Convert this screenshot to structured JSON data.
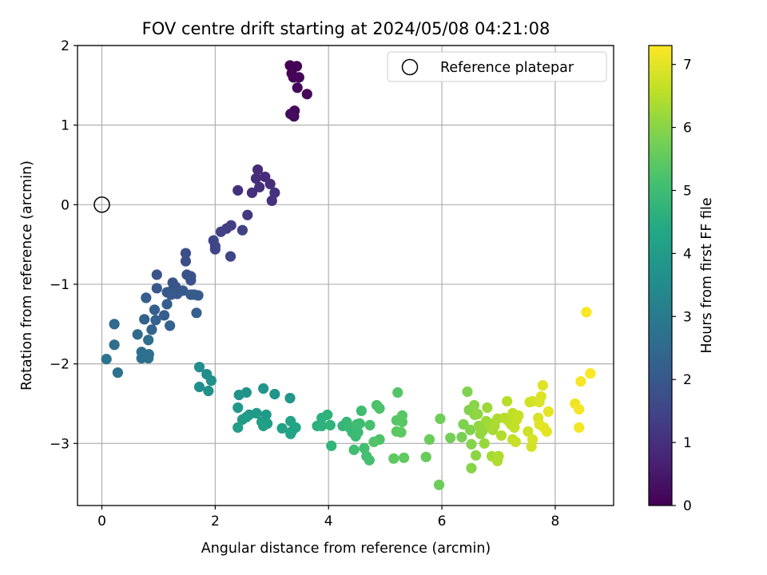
{
  "chart_data": {
    "type": "scatter",
    "title": "FOV centre drift starting at 2024/05/08 04:21:08",
    "xlabel": "Angular distance from reference (arcmin)",
    "ylabel": "Rotation from reference (arcmin)",
    "xlim": [
      -0.43,
      9.03
    ],
    "ylim": [
      -3.78,
      2.0
    ],
    "xticks": [
      0,
      2,
      4,
      6,
      8
    ],
    "yticks": [
      2,
      1,
      0,
      -1,
      -2,
      -3
    ],
    "grid": true,
    "legend": {
      "placement": "top-right",
      "entries": [
        "Reference platepar"
      ]
    },
    "reference_point": {
      "x": 0,
      "y": 0
    },
    "colorbar": {
      "label": "Hours from first FF file",
      "colormap": "viridis",
      "range": [
        0,
        7.3
      ],
      "ticks": [
        0,
        1,
        2,
        3,
        4,
        5,
        6,
        7
      ]
    },
    "points": [
      [
        3.32,
        1.75,
        0.05
      ],
      [
        3.44,
        1.74,
        0.06
      ],
      [
        3.35,
        1.65,
        0.08
      ],
      [
        3.38,
        1.6,
        0.09
      ],
      [
        3.48,
        1.6,
        0.1
      ],
      [
        3.45,
        1.47,
        0.12
      ],
      [
        3.62,
        1.39,
        0.14
      ],
      [
        3.4,
        1.18,
        0.16
      ],
      [
        3.33,
        1.14,
        0.18
      ],
      [
        3.39,
        1.11,
        0.2
      ],
      [
        2.75,
        0.44,
        0.9
      ],
      [
        2.88,
        0.35,
        0.92
      ],
      [
        2.72,
        0.33,
        0.93
      ],
      [
        2.97,
        0.26,
        0.95
      ],
      [
        2.78,
        0.22,
        0.97
      ],
      [
        2.65,
        0.15,
        0.99
      ],
      [
        2.4,
        0.18,
        1.0
      ],
      [
        3.05,
        0.15,
        1.02
      ],
      [
        3.0,
        0.05,
        1.05
      ],
      [
        2.57,
        -0.13,
        1.2
      ],
      [
        2.28,
        -0.26,
        1.3
      ],
      [
        2.2,
        -0.3,
        1.35
      ],
      [
        2.1,
        -0.34,
        1.4
      ],
      [
        2.48,
        -0.32,
        1.42
      ],
      [
        1.97,
        -0.45,
        1.45
      ],
      [
        2.0,
        -0.52,
        1.48
      ],
      [
        2.0,
        -0.56,
        1.5
      ],
      [
        2.27,
        -0.65,
        1.55
      ],
      [
        1.48,
        -0.61,
        1.7
      ],
      [
        1.48,
        -0.71,
        1.75
      ],
      [
        1.5,
        -0.88,
        1.8
      ],
      [
        1.57,
        -0.9,
        1.82
      ],
      [
        1.57,
        -0.95,
        1.85
      ],
      [
        0.97,
        -0.88,
        1.88
      ],
      [
        1.25,
        -0.98,
        1.9
      ],
      [
        1.3,
        -1.03,
        1.93
      ],
      [
        1.25,
        -1.07,
        1.95
      ],
      [
        0.97,
        -1.05,
        1.97
      ],
      [
        1.15,
        -1.1,
        2.0
      ],
      [
        1.22,
        -1.13,
        2.02
      ],
      [
        1.33,
        -1.12,
        2.04
      ],
      [
        1.43,
        -1.08,
        2.06
      ],
      [
        1.57,
        -1.13,
        2.08
      ],
      [
        1.7,
        -1.14,
        2.1
      ],
      [
        1.63,
        -1.13,
        2.12
      ],
      [
        0.78,
        -1.17,
        2.14
      ],
      [
        1.15,
        -1.25,
        2.16
      ],
      [
        0.93,
        -1.32,
        2.18
      ],
      [
        1.1,
        -1.39,
        2.2
      ],
      [
        1.67,
        -1.36,
        2.22
      ],
      [
        0.75,
        -1.44,
        2.24
      ],
      [
        0.95,
        -1.45,
        2.26
      ],
      [
        1.2,
        -1.52,
        2.28
      ],
      [
        0.88,
        -1.57,
        2.3
      ],
      [
        0.22,
        -1.5,
        2.5
      ],
      [
        0.63,
        -1.63,
        2.55
      ],
      [
        0.82,
        -1.7,
        2.6
      ],
      [
        0.22,
        -1.76,
        2.62
      ],
      [
        0.7,
        -1.85,
        2.65
      ],
      [
        0.83,
        -1.88,
        2.68
      ],
      [
        0.7,
        -1.93,
        2.7
      ],
      [
        0.82,
        -1.93,
        2.72
      ],
      [
        0.08,
        -1.94,
        2.75
      ],
      [
        0.28,
        -2.11,
        2.78
      ],
      [
        1.72,
        -2.04,
        3.5
      ],
      [
        1.85,
        -2.13,
        3.55
      ],
      [
        1.93,
        -2.21,
        3.6
      ],
      [
        1.72,
        -2.29,
        3.62
      ],
      [
        1.88,
        -2.34,
        3.65
      ],
      [
        2.42,
        -2.39,
        3.7
      ],
      [
        2.55,
        -2.36,
        3.72
      ],
      [
        2.85,
        -2.31,
        3.75
      ],
      [
        3.05,
        -2.38,
        3.78
      ],
      [
        3.32,
        -2.43,
        3.8
      ],
      [
        2.4,
        -2.55,
        3.85
      ],
      [
        2.6,
        -2.64,
        3.9
      ],
      [
        2.73,
        -2.62,
        3.92
      ],
      [
        2.9,
        -2.64,
        3.95
      ],
      [
        2.48,
        -2.7,
        3.98
      ],
      [
        2.55,
        -2.67,
        4.0
      ],
      [
        2.82,
        -2.73,
        4.02
      ],
      [
        2.92,
        -2.75,
        4.05
      ],
      [
        2.85,
        -2.78,
        4.08
      ],
      [
        2.4,
        -2.8,
        4.1
      ],
      [
        3.18,
        -2.81,
        4.15
      ],
      [
        3.33,
        -2.72,
        4.18
      ],
      [
        3.35,
        -2.85,
        4.2
      ],
      [
        3.33,
        -2.88,
        4.22
      ],
      [
        3.42,
        -2.8,
        4.25
      ],
      [
        3.8,
        -2.78,
        4.6
      ],
      [
        3.88,
        -2.68,
        4.62
      ],
      [
        3.88,
        -2.78,
        4.65
      ],
      [
        3.98,
        -2.64,
        4.68
      ],
      [
        4.03,
        -2.77,
        4.7
      ],
      [
        4.05,
        -3.03,
        4.75
      ],
      [
        4.25,
        -2.78,
        4.8
      ],
      [
        4.32,
        -2.73,
        4.85
      ],
      [
        4.37,
        -2.8,
        4.88
      ],
      [
        4.42,
        -2.86,
        4.9
      ],
      [
        4.48,
        -2.91,
        4.92
      ],
      [
        4.52,
        -2.86,
        4.95
      ],
      [
        4.55,
        -2.75,
        4.98
      ],
      [
        4.58,
        -2.59,
        5.0
      ],
      [
        4.5,
        -2.76,
        5.02
      ],
      [
        4.45,
        -3.08,
        5.05
      ],
      [
        4.63,
        -3.06,
        5.08
      ],
      [
        4.67,
        -3.16,
        5.1
      ],
      [
        4.72,
        -3.21,
        5.12
      ],
      [
        4.73,
        -2.77,
        5.15
      ],
      [
        4.85,
        -2.52,
        5.2
      ],
      [
        4.9,
        -2.56,
        5.22
      ],
      [
        4.9,
        -2.95,
        5.25
      ],
      [
        4.8,
        -2.98,
        5.28
      ],
      [
        5.22,
        -2.36,
        5.3
      ],
      [
        5.2,
        -2.71,
        5.35
      ],
      [
        5.3,
        -2.65,
        5.38
      ],
      [
        5.3,
        -2.73,
        5.4
      ],
      [
        5.2,
        -2.85,
        5.42
      ],
      [
        5.28,
        -2.86,
        5.45
      ],
      [
        5.15,
        -3.19,
        5.48
      ],
      [
        5.33,
        -3.18,
        5.5
      ],
      [
        5.72,
        -3.17,
        5.6
      ],
      [
        5.78,
        -2.95,
        5.62
      ],
      [
        5.95,
        -3.52,
        5.65
      ],
      [
        5.97,
        -2.69,
        5.68
      ],
      [
        6.15,
        -2.93,
        5.75
      ],
      [
        6.35,
        -2.92,
        5.8
      ],
      [
        6.38,
        -2.76,
        5.85
      ],
      [
        6.45,
        -2.35,
        5.88
      ],
      [
        6.48,
        -2.58,
        5.9
      ],
      [
        6.5,
        -2.83,
        5.92
      ],
      [
        6.52,
        -3.01,
        5.95
      ],
      [
        6.52,
        -3.31,
        5.98
      ],
      [
        6.57,
        -2.52,
        6.0
      ],
      [
        6.58,
        -2.64,
        6.02
      ],
      [
        6.6,
        -3.15,
        6.05
      ],
      [
        6.63,
        -2.63,
        6.08
      ],
      [
        6.65,
        -2.78,
        6.1
      ],
      [
        6.68,
        -2.88,
        6.12
      ],
      [
        6.72,
        -2.84,
        6.15
      ],
      [
        6.75,
        -3.0,
        6.18
      ],
      [
        6.78,
        -2.72,
        6.2
      ],
      [
        6.8,
        -2.55,
        6.22
      ],
      [
        6.82,
        -2.74,
        6.25
      ],
      [
        6.85,
        -2.78,
        6.28
      ],
      [
        6.88,
        -3.16,
        6.3
      ],
      [
        6.9,
        -2.83,
        6.32
      ],
      [
        6.93,
        -2.78,
        6.35
      ],
      [
        6.98,
        -2.69,
        6.38
      ],
      [
        7.0,
        -3.16,
        6.4
      ],
      [
        6.98,
        -3.22,
        6.42
      ],
      [
        7.05,
        -2.9,
        6.45
      ],
      [
        7.1,
        -2.68,
        6.48
      ],
      [
        7.15,
        -2.47,
        6.5
      ],
      [
        7.18,
        -2.72,
        6.52
      ],
      [
        7.22,
        -2.76,
        6.55
      ],
      [
        7.25,
        -2.62,
        6.58
      ],
      [
        7.25,
        -2.95,
        6.6
      ],
      [
        7.28,
        -2.8,
        6.62
      ],
      [
        7.32,
        -2.7,
        6.65
      ],
      [
        7.35,
        -2.65,
        6.68
      ],
      [
        7.3,
        -2.98,
        6.7
      ],
      [
        7.52,
        -2.85,
        6.75
      ],
      [
        7.55,
        -2.48,
        6.78
      ],
      [
        7.6,
        -2.47,
        6.8
      ],
      [
        7.58,
        -3.04,
        6.82
      ],
      [
        7.6,
        -2.95,
        6.85
      ],
      [
        7.7,
        -2.68,
        6.88
      ],
      [
        7.72,
        -2.48,
        6.9
      ],
      [
        7.75,
        -2.41,
        6.92
      ],
      [
        7.78,
        -2.27,
        6.95
      ],
      [
        7.72,
        -2.76,
        6.98
      ],
      [
        7.8,
        -2.8,
        7.0
      ],
      [
        7.85,
        -2.85,
        7.02
      ],
      [
        7.88,
        -2.6,
        7.05
      ],
      [
        8.35,
        -2.5,
        7.15
      ],
      [
        8.42,
        -2.8,
        7.18
      ],
      [
        8.42,
        -2.57,
        7.2
      ],
      [
        8.45,
        -2.22,
        7.22
      ],
      [
        8.55,
        -1.35,
        7.25
      ],
      [
        8.62,
        -2.12,
        7.28
      ]
    ]
  }
}
